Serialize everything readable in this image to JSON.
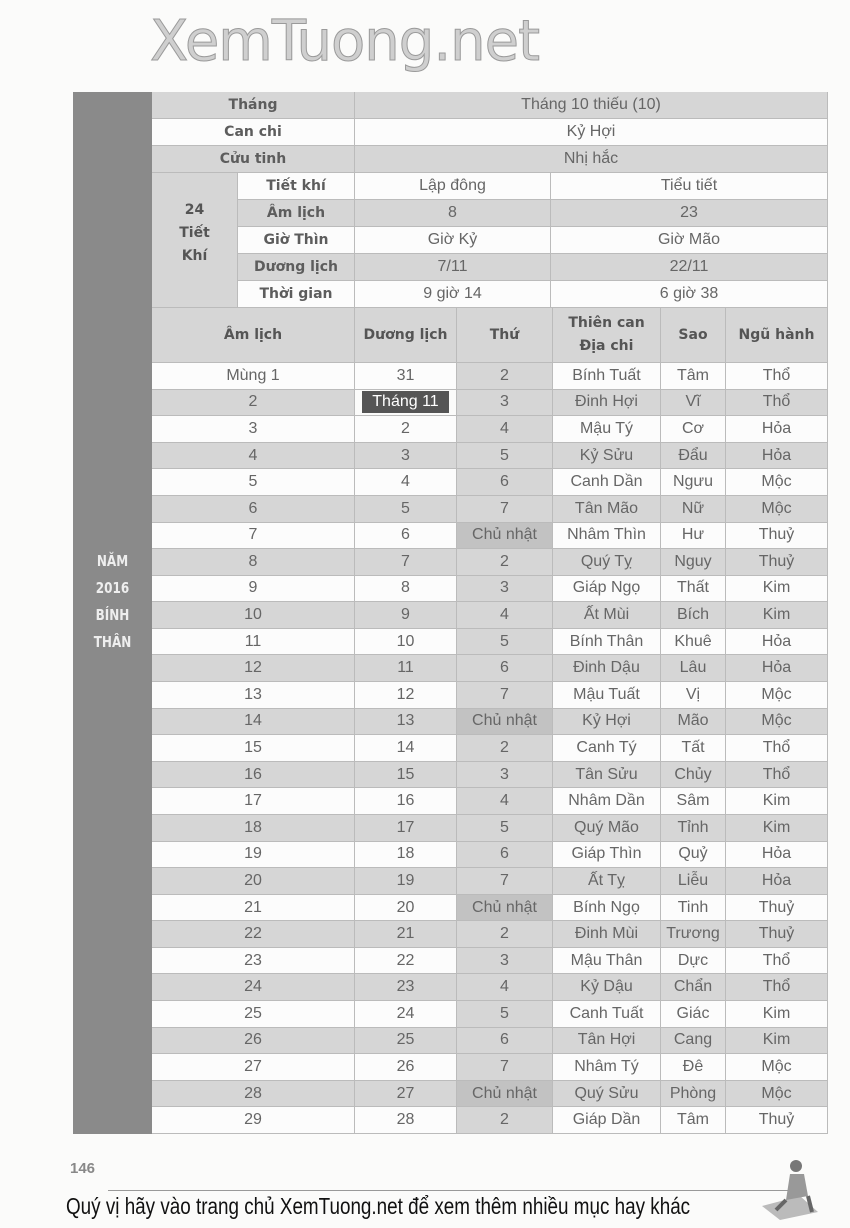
{
  "header": {
    "thang_label": "Tháng",
    "thang_value": "Tháng 10 thiếu (10)",
    "canchi_label": "Can chi",
    "canchi_value": "Kỷ Hợi",
    "cuutinh_label": "Cửu tinh",
    "cuutinh_value": "Nhị hắc",
    "tietkhi_group": "24 Tiết Khí",
    "tietkhi_rows": [
      {
        "label": "Tiết khí",
        "a": "Lập đông",
        "b": "Tiểu tiết"
      },
      {
        "label": "Âm lịch",
        "a": "8",
        "b": "23"
      },
      {
        "label": "Giờ Thìn",
        "a": "Giờ Kỷ",
        "b": "Giờ Mão"
      },
      {
        "label": "Dương lịch",
        "a": "7/11",
        "b": "22/11"
      },
      {
        "label": "Thời gian",
        "a": "9 giờ 14",
        "b": "6 giờ 38"
      }
    ]
  },
  "columns": [
    "Âm lịch",
    "Dương lịch",
    "Thứ",
    "Thiên can Địa chi",
    "Sao",
    "Ngũ hành"
  ],
  "rows": [
    [
      "Mùng 1",
      "31",
      "2",
      "Bính Tuất",
      "Tâm",
      "Thổ"
    ],
    [
      "2",
      "Tháng 11",
      "3",
      "Đinh Hợi",
      "Vĩ",
      "Thổ"
    ],
    [
      "3",
      "2",
      "4",
      "Mậu Tý",
      "Cơ",
      "Hỏa"
    ],
    [
      "4",
      "3",
      "5",
      "Kỷ Sửu",
      "Đẩu",
      "Hỏa"
    ],
    [
      "5",
      "4",
      "6",
      "Canh Dần",
      "Ngưu",
      "Mộc"
    ],
    [
      "6",
      "5",
      "7",
      "Tân Mão",
      "Nữ",
      "Mộc"
    ],
    [
      "7",
      "6",
      "Chủ nhật",
      "Nhâm Thìn",
      "Hư",
      "Thuỷ"
    ],
    [
      "8",
      "7",
      "2",
      "Quý Tỵ",
      "Nguy",
      "Thuỷ"
    ],
    [
      "9",
      "8",
      "3",
      "Giáp Ngọ",
      "Thất",
      "Kim"
    ],
    [
      "10",
      "9",
      "4",
      "Ất Mùi",
      "Bích",
      "Kim"
    ],
    [
      "11",
      "10",
      "5",
      "Bính Thân",
      "Khuê",
      "Hỏa"
    ],
    [
      "12",
      "11",
      "6",
      "Đinh Dậu",
      "Lâu",
      "Hỏa"
    ],
    [
      "13",
      "12",
      "7",
      "Mậu Tuất",
      "Vị",
      "Mộc"
    ],
    [
      "14",
      "13",
      "Chủ nhật",
      "Kỷ Hợi",
      "Mão",
      "Mộc"
    ],
    [
      "15",
      "14",
      "2",
      "Canh Tý",
      "Tất",
      "Thổ"
    ],
    [
      "16",
      "15",
      "3",
      "Tân Sửu",
      "Chủy",
      "Thổ"
    ],
    [
      "17",
      "16",
      "4",
      "Nhâm Dần",
      "Sâm",
      "Kim"
    ],
    [
      "18",
      "17",
      "5",
      "Quý Mão",
      "Tỉnh",
      "Kim"
    ],
    [
      "19",
      "18",
      "6",
      "Giáp Thìn",
      "Quỷ",
      "Hỏa"
    ],
    [
      "20",
      "19",
      "7",
      "Ất Tỵ",
      "Liễu",
      "Hỏa"
    ],
    [
      "21",
      "20",
      "Chủ nhật",
      "Bính Ngọ",
      "Tinh",
      "Thuỷ"
    ],
    [
      "22",
      "21",
      "2",
      "Đinh Mùi",
      "Trương",
      "Thuỷ"
    ],
    [
      "23",
      "22",
      "3",
      "Mậu Thân",
      "Dực",
      "Thổ"
    ],
    [
      "24",
      "23",
      "4",
      "Kỷ Dậu",
      "Chẩn",
      "Thổ"
    ],
    [
      "25",
      "24",
      "5",
      "Canh Tuất",
      "Giác",
      "Kim"
    ],
    [
      "26",
      "25",
      "6",
      "Tân Hợi",
      "Cang",
      "Kim"
    ],
    [
      "27",
      "26",
      "7",
      "Nhâm Tý",
      "Đê",
      "Mộc"
    ],
    [
      "28",
      "27",
      "Chủ nhật",
      "Quý Sửu",
      "Phòng",
      "Mộc"
    ],
    [
      "29",
      "28",
      "2",
      "Giáp Dần",
      "Tâm",
      "Thuỷ"
    ]
  ],
  "side_label": [
    "NĂM",
    "2016",
    "BÍNH",
    "THÂN"
  ],
  "watermark": "XemTuong.net",
  "page_number": "146",
  "footer": "Quý vị hãy vào trang chủ XemTuong.net để xem thêm nhiều mục hay khác",
  "colors": {
    "band": "#8a8a8a",
    "row_shade": "#d6d6d6",
    "highlight": "#555555"
  }
}
